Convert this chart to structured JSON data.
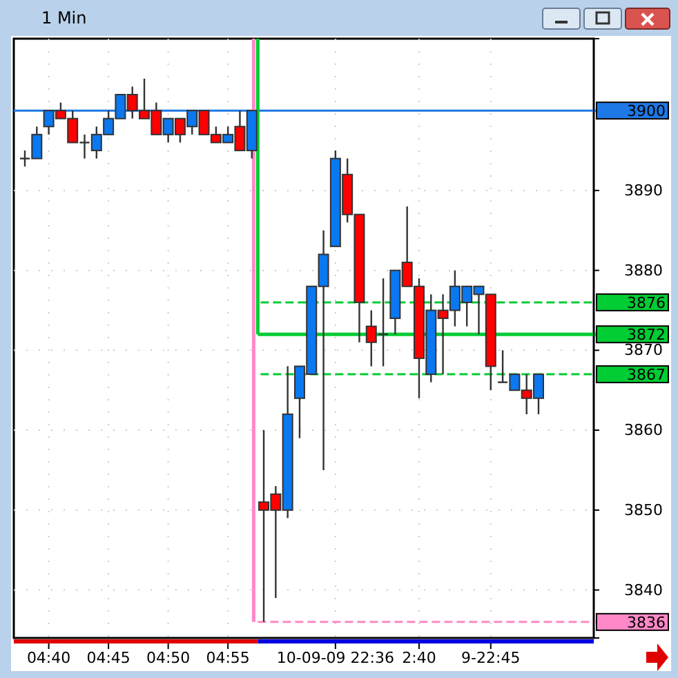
{
  "chart_data": {
    "type": "candlestick",
    "title": "1 Min",
    "categories": [
      null,
      null,
      "04:40",
      null,
      null,
      null,
      null,
      "04:45",
      null,
      null,
      null,
      null,
      "04:50",
      null,
      null,
      null,
      null,
      "04:55",
      null,
      null,
      null,
      null,
      null,
      null,
      null,
      null,
      "10-09-09 22:36",
      null,
      null,
      null,
      null,
      null,
      null,
      "2:40",
      null,
      null,
      null,
      null,
      null,
      "9-22:45",
      null,
      null,
      null,
      null
    ],
    "ohlc": [
      [
        3894,
        3895,
        3893,
        3894
      ],
      [
        3894,
        3898,
        3894,
        3897
      ],
      [
        3898,
        3900,
        3897,
        3900
      ],
      [
        3900,
        3901,
        3899,
        3899
      ],
      [
        3899,
        3900,
        3896,
        3896
      ],
      [
        3896,
        3897,
        3894,
        3896
      ],
      [
        3895,
        3898,
        3894,
        3897
      ],
      [
        3897,
        3900,
        3897,
        3899
      ],
      [
        3899,
        3902,
        3899,
        3902
      ],
      [
        3902,
        3903,
        3899,
        3900
      ],
      [
        3900,
        3904,
        3899,
        3899
      ],
      [
        3900,
        3901,
        3897,
        3897
      ],
      [
        3897,
        3899,
        3896,
        3899
      ],
      [
        3899,
        3899,
        3896,
        3897
      ],
      [
        3898,
        3900,
        3897,
        3900
      ],
      [
        3900,
        3900,
        3897,
        3897
      ],
      [
        3897,
        3898,
        3896,
        3896
      ],
      [
        3896,
        3898,
        3896,
        3897
      ],
      [
        3898,
        3900,
        3895,
        3895
      ],
      [
        3895,
        3900,
        3894,
        3900
      ],
      [
        3851,
        3860,
        3836,
        3850
      ],
      [
        3852,
        3853,
        3839,
        3850
      ],
      [
        3850,
        3868,
        3849,
        3862
      ],
      [
        3864,
        3868,
        3859,
        3868
      ],
      [
        3867,
        3878,
        3867,
        3878
      ],
      [
        3878,
        3885,
        3855,
        3882
      ],
      [
        3883,
        3895,
        3883,
        3894
      ],
      [
        3892,
        3894,
        3886,
        3887
      ],
      [
        3887,
        3887,
        3871,
        3876
      ],
      [
        3873,
        3875,
        3868,
        3871
      ],
      [
        3872,
        3879,
        3868,
        3872
      ],
      [
        3874,
        3880,
        3872,
        3880
      ],
      [
        3881,
        3888,
        3878,
        3878
      ],
      [
        3878,
        3879,
        3864,
        3869
      ],
      [
        3867,
        3877,
        3866,
        3875
      ],
      [
        3875,
        3877,
        3867,
        3874
      ],
      [
        3875,
        3880,
        3873,
        3878
      ],
      [
        3876,
        3878,
        3873,
        3878
      ],
      [
        3877,
        3878,
        3872,
        3878
      ],
      [
        3877,
        3877,
        3865,
        3868
      ],
      [
        3866,
        3870,
        3866,
        3866
      ],
      [
        3865,
        3867,
        3865,
        3867
      ],
      [
        3865,
        3867,
        3862,
        3864
      ],
      [
        3864,
        3867,
        3862,
        3867
      ]
    ],
    "colors": [
      "#333333",
      "#0a78f0",
      "#0a78f0",
      "#ff0000",
      "#ff0000",
      "#333333",
      "#0a78f0",
      "#0a78f0",
      "#0a78f0",
      "#ff0000",
      "#ff0000",
      "#ff0000",
      "#0a78f0",
      "#ff0000",
      "#0a78f0",
      "#ff0000",
      "#ff0000",
      "#0a78f0",
      "#ff0000",
      "#0a78f0",
      "#ff0000",
      "#ff0000",
      "#0a78f0",
      "#0a78f0",
      "#0a78f0",
      "#0a78f0",
      "#0a78f0",
      "#ff0000",
      "#ff0000",
      "#ff0000",
      "#333333",
      "#0a78f0",
      "#ff0000",
      "#ff0000",
      "#0a78f0",
      "#ff0000",
      "#0a78f0",
      "#0a78f0",
      "#0a78f0",
      "#ff0000",
      "#333333",
      "#0a78f0",
      "#ff0000",
      "#0a78f0"
    ],
    "ylim": [
      3834,
      3909
    ],
    "yticks": [
      3840,
      3850,
      3860,
      3870,
      3880,
      3890
    ],
    "grid": true,
    "ref_lines": [
      {
        "axis": "y",
        "value": 3900,
        "label": "3900",
        "color": "#1e78e6",
        "line_style": "solid"
      },
      {
        "axis": "y",
        "value": 3876,
        "label": "3876",
        "color": "#00cc33",
        "line_style": "dashed"
      },
      {
        "axis": "y",
        "value": 3872,
        "label": "3872",
        "color": "#00cc33",
        "line_style": "solid"
      },
      {
        "axis": "y",
        "value": 3867,
        "label": "3867",
        "color": "#00cc33",
        "line_style": "dashed"
      },
      {
        "axis": "y",
        "value": 3836,
        "label": "3836",
        "color": "#ff88c8",
        "line_style": "dashed"
      }
    ]
  }
}
